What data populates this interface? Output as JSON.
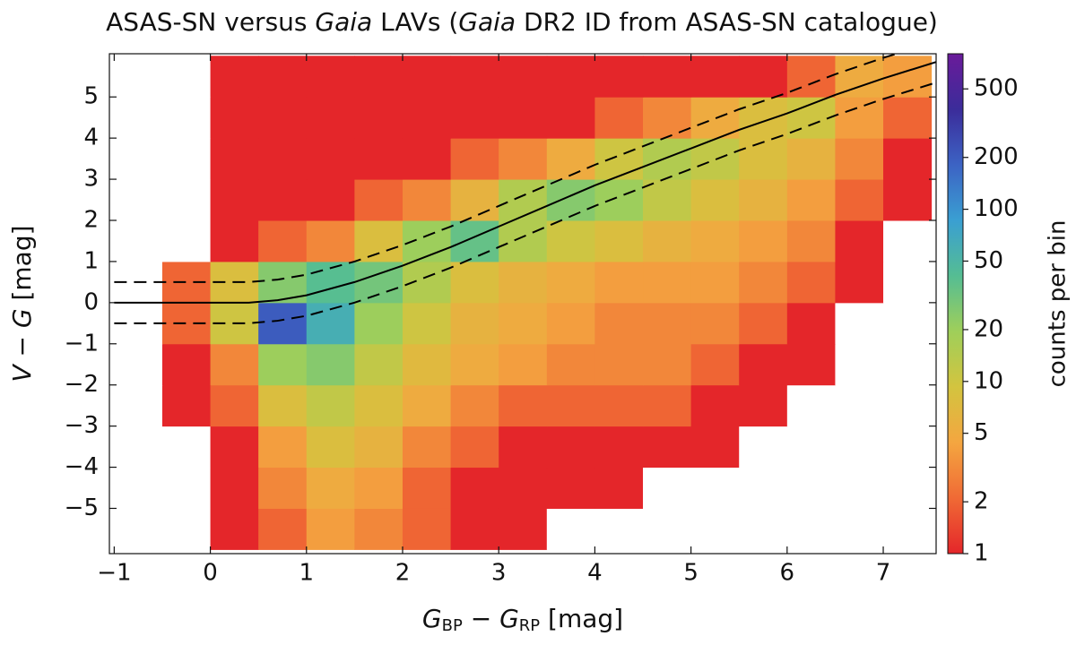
{
  "chart_data": {
    "type": "hist2d",
    "title": [
      "ASAS-SN versus ",
      "Gaia",
      " LAVs (",
      "Gaia",
      " DR2 ID from ASAS-SN catalogue)"
    ],
    "xlabel": [
      "G",
      "BP",
      " − ",
      "G",
      "RP",
      "   [mag]"
    ],
    "ylabel": [
      "V",
      " − ",
      "G",
      "   [mag]"
    ],
    "xlim": [
      -1.05,
      7.55
    ],
    "ylim": [
      -6.1,
      6.05
    ],
    "xticks": [
      {
        "value": -1,
        "label": "−1"
      },
      0,
      1,
      2,
      3,
      4,
      5,
      6,
      7
    ],
    "yticks": [
      {
        "value": -5,
        "label": "−5"
      },
      {
        "value": -4,
        "label": "−4"
      },
      {
        "value": -3,
        "label": "−3"
      },
      {
        "value": -2,
        "label": "−2"
      },
      {
        "value": -1,
        "label": "−1"
      },
      0,
      1,
      2,
      3,
      4,
      5
    ],
    "xbins": [
      -1,
      -0.5,
      0,
      0.5,
      1,
      1.5,
      2,
      2.5,
      3,
      3.5,
      4,
      4.5,
      5,
      5.5,
      6,
      6.5,
      7,
      7.5
    ],
    "ybins": [
      -6,
      -5,
      -4,
      -3,
      -2,
      -1,
      0,
      1,
      2,
      3,
      4,
      5,
      6
    ],
    "counts": [
      [
        0,
        0,
        1,
        2,
        4,
        3,
        2,
        1,
        1,
        0,
        0,
        0,
        0,
        0,
        0,
        0,
        0
      ],
      [
        0,
        0,
        1,
        3,
        5,
        4,
        2,
        1,
        1,
        1,
        1,
        0,
        0,
        0,
        0,
        0,
        0
      ],
      [
        0,
        0,
        1,
        4,
        8,
        6,
        3,
        2,
        1,
        1,
        1,
        1,
        1,
        0,
        0,
        0,
        0
      ],
      [
        0,
        1,
        2,
        8,
        12,
        8,
        5,
        3,
        2,
        2,
        2,
        2,
        1,
        1,
        0,
        0,
        0
      ],
      [
        0,
        1,
        3,
        20,
        25,
        12,
        7,
        5,
        4,
        3,
        3,
        3,
        2,
        1,
        1,
        0,
        0
      ],
      [
        0,
        2,
        10,
        200,
        60,
        20,
        10,
        6,
        5,
        4,
        3,
        3,
        3,
        2,
        1,
        0,
        0
      ],
      [
        0,
        2,
        8,
        25,
        40,
        30,
        15,
        8,
        6,
        5,
        4,
        4,
        4,
        3,
        2,
        1,
        0
      ],
      [
        0,
        0,
        1,
        2,
        3,
        8,
        20,
        35,
        15,
        10,
        8,
        6,
        5,
        4,
        3,
        1,
        0
      ],
      [
        0,
        0,
        1,
        1,
        1,
        2,
        3,
        6,
        15,
        25,
        20,
        12,
        8,
        6,
        4,
        2,
        1
      ],
      [
        0,
        0,
        1,
        1,
        1,
        1,
        1,
        2,
        3,
        5,
        10,
        15,
        12,
        8,
        6,
        3,
        1
      ],
      [
        0,
        0,
        1,
        1,
        1,
        1,
        1,
        1,
        1,
        1,
        2,
        3,
        5,
        8,
        10,
        4,
        2
      ],
      [
        0,
        0,
        1,
        1,
        1,
        1,
        1,
        1,
        1,
        1,
        1,
        1,
        1,
        1,
        2,
        5,
        4
      ]
    ],
    "clim": [
      1,
      800
    ],
    "cticks": [
      1,
      2,
      5,
      10,
      20,
      50,
      100,
      200,
      500
    ],
    "clabel": "counts per bin",
    "cmap": [
      "#e4262a",
      "#f06a35",
      "#f4a640",
      "#d3c43f",
      "#9fcf5a",
      "#55bd93",
      "#3a9fd2",
      "#3c63c4",
      "#3b2c9a",
      "#6a1b9a"
    ],
    "lines": [
      {
        "style": "solid",
        "color": "#000000",
        "x": [
          -1,
          0,
          0.4,
          0.7,
          1,
          1.5,
          2,
          2.5,
          3,
          3.5,
          4,
          4.5,
          5,
          5.5,
          6,
          6.5,
          7,
          7.55
        ],
        "values": [
          0,
          0,
          0,
          0.06,
          0.18,
          0.5,
          0.9,
          1.35,
          1.85,
          2.35,
          2.85,
          3.3,
          3.75,
          4.2,
          4.6,
          5.05,
          5.45,
          5.85
        ]
      },
      {
        "style": "dashed",
        "color": "#000000",
        "x": [
          -1,
          0,
          0.4,
          0.7,
          1,
          1.5,
          2,
          2.5,
          3,
          3.5,
          4,
          4.5,
          5,
          5.5,
          6,
          6.5,
          7,
          7.55
        ],
        "values": [
          0.5,
          0.5,
          0.5,
          0.56,
          0.68,
          1,
          1.4,
          1.85,
          2.35,
          2.85,
          3.35,
          3.8,
          4.25,
          4.7,
          5.1,
          5.55,
          5.95,
          6.35
        ]
      },
      {
        "style": "dashed",
        "color": "#000000",
        "x": [
          -1,
          0,
          0.4,
          0.7,
          1,
          1.5,
          2,
          2.5,
          3,
          3.5,
          4,
          4.5,
          5,
          5.5,
          6,
          6.5,
          7,
          7.55
        ],
        "values": [
          -0.5,
          -0.5,
          -0.5,
          -0.44,
          -0.32,
          0,
          0.4,
          0.85,
          1.35,
          1.85,
          2.35,
          2.8,
          3.25,
          3.7,
          4.1,
          4.55,
          4.95,
          5.35
        ]
      }
    ]
  }
}
